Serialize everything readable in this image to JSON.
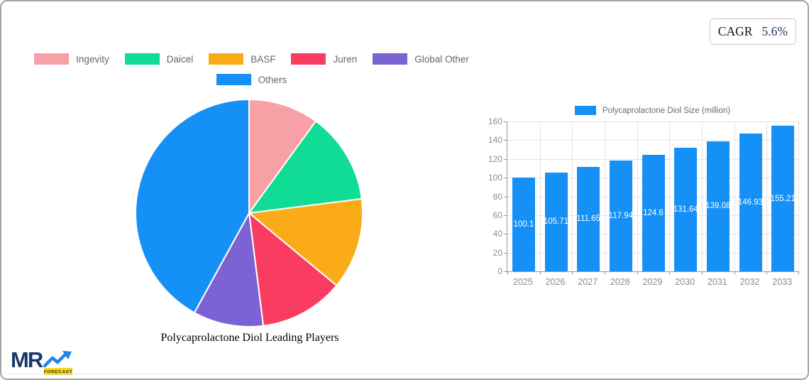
{
  "cagr": {
    "label": "CAGR",
    "value": "5.6%"
  },
  "logo": {
    "mr": "MR",
    "forecast": "FORECAST"
  },
  "pie_title": "Polycaprolactone Diol Leading Players",
  "pie_legend": [
    {
      "label": "Ingevity",
      "color": "#f7a0a6"
    },
    {
      "label": "Daicel",
      "color": "#10dc96"
    },
    {
      "label": "BASF",
      "color": "#fbab17"
    },
    {
      "label": "Juren",
      "color": "#fa3c61"
    },
    {
      "label": "Global Other",
      "color": "#7c63d3"
    },
    {
      "label": "Others",
      "color": "#1590f6"
    }
  ],
  "bar_legend": {
    "label": "Polycaprolactone Diol Size (million)",
    "color": "#1590f6"
  },
  "chart_data": [
    {
      "type": "pie",
      "title": "Polycaprolactone Diol Leading Players",
      "labels": [
        "Ingevity",
        "Daicel",
        "BASF",
        "Juren",
        "Global Other",
        "Others"
      ],
      "values": [
        10,
        13,
        13,
        12,
        10,
        42
      ],
      "colors": [
        "#f7a0a6",
        "#10dc96",
        "#fbab17",
        "#fa3c61",
        "#7c63d3",
        "#1590f6"
      ],
      "start_angle_deg": -90,
      "direction": "clockwise",
      "legend_position": "top",
      "slice_border_color": "#ffffff"
    },
    {
      "type": "bar",
      "series_label": "Polycaprolactone Diol Size (million)",
      "categories": [
        "2025",
        "2026",
        "2027",
        "2028",
        "2029",
        "2030",
        "2031",
        "2032",
        "2033"
      ],
      "values": [
        100.1,
        105.71,
        111.65,
        117.94,
        124.6,
        131.64,
        139.08,
        146.93,
        155.21
      ],
      "value_labels": [
        "100.1",
        "105.71",
        "111.65",
        "117.94",
        "124.6",
        "131.64",
        "139.08",
        "146.93",
        "155.21"
      ],
      "bar_color": "#1590f6",
      "ylim": [
        0,
        160
      ],
      "yticks": [
        0,
        20,
        40,
        60,
        80,
        100,
        120,
        140,
        160
      ],
      "grid": true,
      "legend_position": "top",
      "value_label_style": "inside-center-white"
    }
  ]
}
